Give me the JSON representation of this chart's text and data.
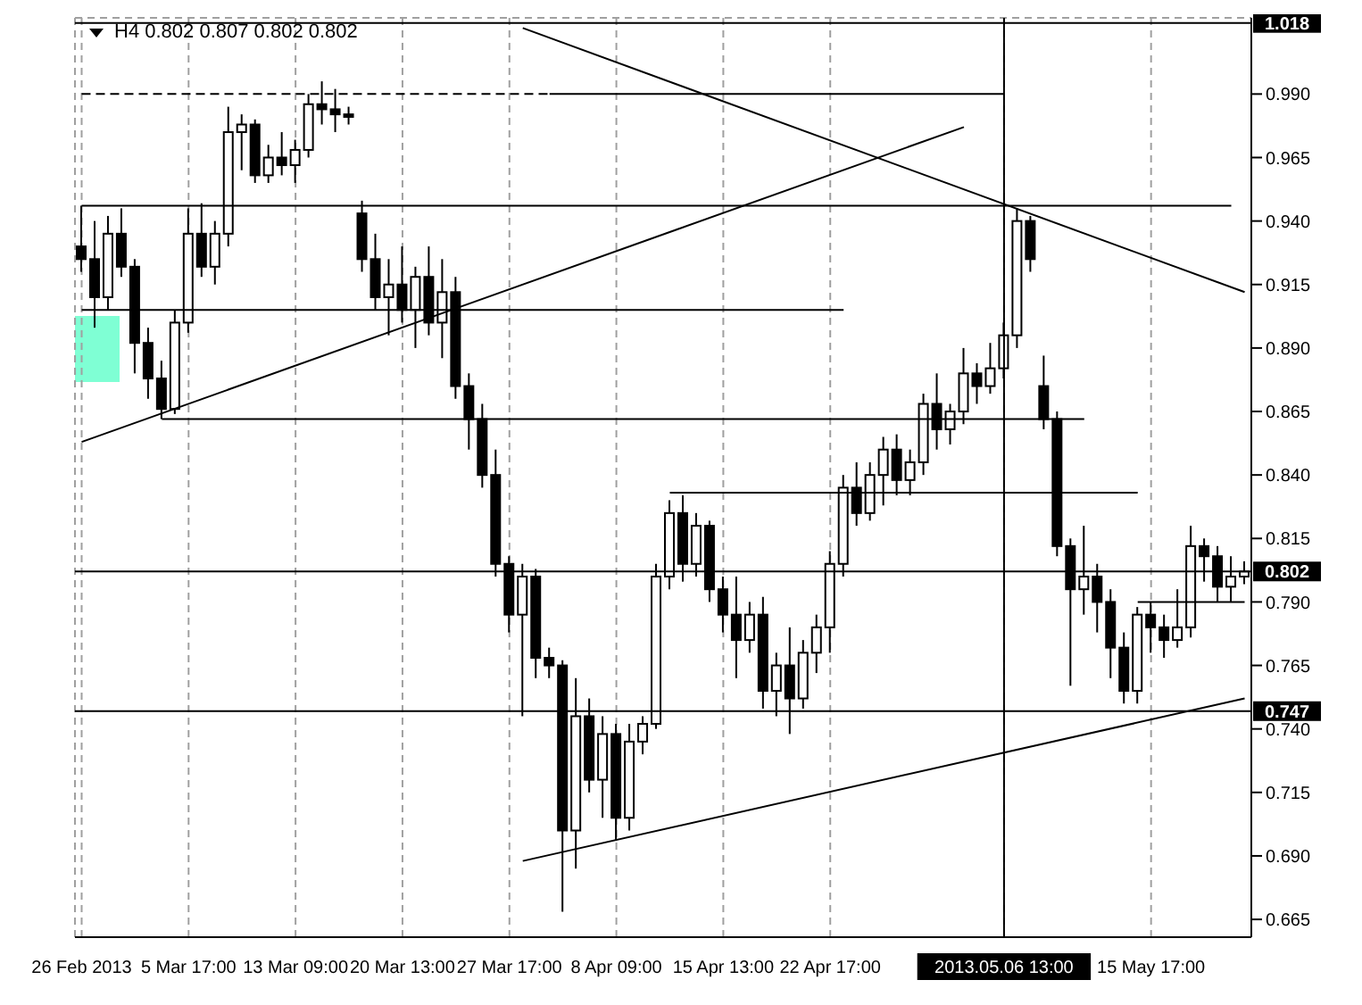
{
  "chart_data": {
    "type": "candlestick",
    "title": "H4  0.802 0.807 0.802 0.802",
    "color": "#000000",
    "grid": true,
    "categories": [
      "26 Feb 2013",
      null,
      null,
      null,
      null,
      null,
      null,
      null,
      "5 Mar 17:00",
      null,
      null,
      null,
      null,
      null,
      null,
      null,
      "13 Mar 09:00",
      null,
      null,
      null,
      null,
      null,
      null,
      null,
      "20 Mar 13:00",
      null,
      null,
      null,
      null,
      null,
      null,
      null,
      "27 Mar 17:00",
      null,
      null,
      null,
      null,
      null,
      null,
      null,
      "8 Apr 09:00",
      null,
      null,
      null,
      null,
      null,
      null,
      null,
      "15 Apr 13:00",
      null,
      null,
      null,
      null,
      null,
      null,
      null,
      "22 Apr 17:00",
      null,
      null,
      null,
      null,
      null,
      null,
      null,
      null,
      null,
      null,
      null,
      null,
      "2013.05.06 13:00",
      null,
      null,
      null,
      null,
      null,
      null,
      null,
      null,
      null,
      null,
      "15 May 17:00",
      null,
      null,
      null,
      null,
      null,
      null,
      null
    ],
    "ohlc": [
      [
        0.93,
        0.946,
        0.92,
        0.925
      ],
      [
        0.925,
        0.94,
        0.898,
        0.91
      ],
      [
        0.91,
        0.942,
        0.905,
        0.935
      ],
      [
        0.935,
        0.945,
        0.918,
        0.922
      ],
      [
        0.922,
        0.925,
        0.88,
        0.892
      ],
      [
        0.892,
        0.898,
        0.87,
        0.878
      ],
      [
        0.878,
        0.885,
        0.862,
        0.866
      ],
      [
        0.866,
        0.905,
        0.864,
        0.9
      ],
      [
        0.9,
        0.945,
        0.896,
        0.935
      ],
      [
        0.935,
        0.947,
        0.918,
        0.922
      ],
      [
        0.922,
        0.94,
        0.915,
        0.935
      ],
      [
        0.935,
        0.985,
        0.93,
        0.975
      ],
      [
        0.975,
        0.982,
        0.96,
        0.978
      ],
      [
        0.978,
        0.98,
        0.955,
        0.958
      ],
      [
        0.958,
        0.97,
        0.955,
        0.965
      ],
      [
        0.965,
        0.975,
        0.958,
        0.962
      ],
      [
        0.962,
        0.972,
        0.955,
        0.968
      ],
      [
        0.968,
        0.99,
        0.965,
        0.986
      ],
      [
        0.986,
        0.995,
        0.978,
        0.984
      ],
      [
        0.984,
        0.992,
        0.975,
        0.982
      ],
      [
        0.982,
        0.985,
        0.978,
        0.981
      ],
      [
        0.943,
        0.948,
        0.92,
        0.925
      ],
      [
        0.925,
        0.935,
        0.905,
        0.91
      ],
      [
        0.91,
        0.925,
        0.895,
        0.915
      ],
      [
        0.915,
        0.93,
        0.9,
        0.905
      ],
      [
        0.905,
        0.922,
        0.89,
        0.918
      ],
      [
        0.918,
        0.93,
        0.895,
        0.9
      ],
      [
        0.9,
        0.925,
        0.886,
        0.912
      ],
      [
        0.912,
        0.918,
        0.87,
        0.875
      ],
      [
        0.875,
        0.88,
        0.85,
        0.862
      ],
      [
        0.862,
        0.868,
        0.835,
        0.84
      ],
      [
        0.84,
        0.85,
        0.8,
        0.805
      ],
      [
        0.805,
        0.808,
        0.778,
        0.785
      ],
      [
        0.785,
        0.805,
        0.745,
        0.8
      ],
      [
        0.8,
        0.803,
        0.76,
        0.768
      ],
      [
        0.768,
        0.772,
        0.76,
        0.765
      ],
      [
        0.765,
        0.767,
        0.668,
        0.7
      ],
      [
        0.7,
        0.76,
        0.685,
        0.745
      ],
      [
        0.745,
        0.752,
        0.715,
        0.72
      ],
      [
        0.72,
        0.745,
        0.705,
        0.738
      ],
      [
        0.738,
        0.742,
        0.696,
        0.705
      ],
      [
        0.705,
        0.742,
        0.7,
        0.735
      ],
      [
        0.735,
        0.745,
        0.73,
        0.742
      ],
      [
        0.742,
        0.805,
        0.74,
        0.8
      ],
      [
        0.8,
        0.83,
        0.795,
        0.825
      ],
      [
        0.825,
        0.832,
        0.798,
        0.805
      ],
      [
        0.805,
        0.825,
        0.8,
        0.82
      ],
      [
        0.82,
        0.822,
        0.79,
        0.795
      ],
      [
        0.795,
        0.8,
        0.778,
        0.785
      ],
      [
        0.785,
        0.8,
        0.76,
        0.775
      ],
      [
        0.775,
        0.79,
        0.77,
        0.785
      ],
      [
        0.785,
        0.792,
        0.748,
        0.755
      ],
      [
        0.755,
        0.77,
        0.745,
        0.765
      ],
      [
        0.765,
        0.78,
        0.738,
        0.752
      ],
      [
        0.752,
        0.775,
        0.748,
        0.77
      ],
      [
        0.77,
        0.785,
        0.762,
        0.78
      ],
      [
        0.78,
        0.81,
        0.77,
        0.805
      ],
      [
        0.805,
        0.84,
        0.8,
        0.835
      ],
      [
        0.835,
        0.845,
        0.82,
        0.825
      ],
      [
        0.825,
        0.845,
        0.822,
        0.84
      ],
      [
        0.84,
        0.855,
        0.828,
        0.85
      ],
      [
        0.85,
        0.856,
        0.832,
        0.838
      ],
      [
        0.838,
        0.85,
        0.832,
        0.845
      ],
      [
        0.845,
        0.872,
        0.84,
        0.868
      ],
      [
        0.868,
        0.88,
        0.85,
        0.858
      ],
      [
        0.858,
        0.868,
        0.852,
        0.865
      ],
      [
        0.865,
        0.89,
        0.86,
        0.88
      ],
      [
        0.88,
        0.884,
        0.868,
        0.875
      ],
      [
        0.875,
        0.892,
        0.872,
        0.882
      ],
      [
        0.882,
        0.9,
        0.878,
        0.895
      ],
      [
        0.895,
        0.945,
        0.89,
        0.94
      ],
      [
        0.94,
        0.942,
        0.92,
        0.925
      ],
      [
        0.875,
        0.887,
        0.858,
        0.862
      ],
      [
        0.862,
        0.865,
        0.808,
        0.812
      ],
      [
        0.812,
        0.815,
        0.757,
        0.795
      ],
      [
        0.795,
        0.82,
        0.785,
        0.8
      ],
      [
        0.8,
        0.805,
        0.778,
        0.79
      ],
      [
        0.79,
        0.795,
        0.76,
        0.772
      ],
      [
        0.772,
        0.778,
        0.75,
        0.755
      ],
      [
        0.755,
        0.788,
        0.75,
        0.785
      ],
      [
        0.785,
        0.79,
        0.77,
        0.78
      ],
      [
        0.78,
        0.785,
        0.768,
        0.775
      ],
      [
        0.775,
        0.795,
        0.772,
        0.78
      ],
      [
        0.78,
        0.82,
        0.776,
        0.812
      ],
      [
        0.812,
        0.815,
        0.798,
        0.808
      ],
      [
        0.808,
        0.812,
        0.79,
        0.796
      ],
      [
        0.796,
        0.808,
        0.79,
        0.8
      ],
      [
        0.8,
        0.806,
        0.797,
        0.802
      ]
    ],
    "series": [
      {
        "type": "line",
        "color": "#000000",
        "line_style": "dashed",
        "values": [
          0.99,
          null,
          null,
          null,
          null,
          null,
          null,
          null,
          null,
          null,
          null,
          null,
          null,
          null,
          null,
          null,
          null,
          null,
          null,
          null,
          null,
          null,
          null,
          null,
          null,
          null,
          null,
          null,
          null,
          null,
          null,
          null,
          null,
          null,
          null,
          0.99,
          null,
          null,
          null,
          null,
          null,
          null,
          null,
          null,
          null,
          null,
          null,
          null,
          null,
          null,
          null,
          null,
          null,
          null,
          null,
          null,
          null,
          null,
          null,
          null,
          null,
          null,
          null,
          null,
          null,
          null,
          null,
          null,
          null,
          null,
          null,
          null,
          null,
          null,
          null,
          null,
          null,
          null,
          null,
          null,
          null,
          null,
          null,
          null,
          null,
          null,
          null,
          null
        ]
      },
      {
        "type": "line",
        "color": "#000000",
        "values": [
          null,
          null,
          null,
          null,
          null,
          null,
          null,
          null,
          null,
          null,
          null,
          null,
          null,
          null,
          null,
          null,
          null,
          null,
          null,
          null,
          null,
          null,
          null,
          null,
          null,
          null,
          null,
          null,
          null,
          null,
          null,
          null,
          null,
          null,
          null,
          0.99,
          null,
          null,
          null,
          null,
          null,
          null,
          null,
          null,
          null,
          null,
          null,
          null,
          null,
          null,
          null,
          null,
          null,
          null,
          null,
          null,
          null,
          null,
          null,
          null,
          null,
          null,
          null,
          null,
          null,
          null,
          null,
          null,
          null,
          0.99,
          null,
          null,
          null,
          null,
          null,
          null,
          null,
          null,
          null,
          null,
          null,
          null,
          null,
          null,
          null,
          null,
          null,
          null
        ]
      },
      {
        "type": "line",
        "color": "#000000",
        "values": [
          0.946,
          null,
          null,
          null,
          null,
          null,
          null,
          null,
          null,
          null,
          null,
          null,
          null,
          null,
          null,
          null,
          null,
          null,
          null,
          null,
          null,
          null,
          null,
          null,
          null,
          null,
          null,
          null,
          null,
          null,
          null,
          null,
          null,
          null,
          null,
          null,
          null,
          null,
          null,
          null,
          null,
          null,
          null,
          null,
          null,
          null,
          null,
          null,
          null,
          null,
          null,
          null,
          null,
          null,
          null,
          null,
          null,
          null,
          null,
          null,
          null,
          null,
          null,
          null,
          null,
          null,
          null,
          null,
          null,
          null,
          null,
          null,
          null,
          null,
          null,
          null,
          null,
          null,
          null,
          null,
          null,
          null,
          null,
          null,
          null,
          null,
          0.946,
          null
        ]
      },
      {
        "type": "line",
        "color": "#000000",
        "values": [
          0.905,
          null,
          null,
          null,
          null,
          null,
          null,
          null,
          null,
          null,
          null,
          null,
          null,
          null,
          null,
          null,
          null,
          null,
          null,
          null,
          null,
          null,
          null,
          null,
          null,
          null,
          null,
          null,
          null,
          null,
          null,
          null,
          null,
          null,
          null,
          null,
          null,
          null,
          null,
          null,
          null,
          null,
          null,
          null,
          null,
          null,
          null,
          null,
          null,
          null,
          null,
          null,
          null,
          null,
          null,
          null,
          null,
          0.905,
          null,
          null,
          null,
          null,
          null,
          null,
          null,
          null,
          null,
          null,
          null,
          null,
          null,
          null,
          null,
          null,
          null,
          null,
          null,
          null,
          null,
          null,
          null,
          null,
          null,
          null,
          null,
          null,
          null,
          null
        ]
      },
      {
        "type": "line",
        "color": "#000000",
        "values": [
          null,
          null,
          null,
          null,
          null,
          null,
          0.862,
          null,
          null,
          null,
          null,
          null,
          null,
          null,
          null,
          null,
          null,
          null,
          null,
          null,
          null,
          null,
          null,
          null,
          null,
          null,
          null,
          null,
          null,
          null,
          null,
          null,
          null,
          null,
          null,
          null,
          null,
          null,
          null,
          null,
          null,
          null,
          null,
          null,
          null,
          null,
          null,
          null,
          null,
          null,
          null,
          null,
          null,
          null,
          null,
          null,
          null,
          null,
          null,
          null,
          null,
          null,
          null,
          null,
          null,
          null,
          null,
          null,
          null,
          null,
          null,
          null,
          null,
          null,
          null,
          0.862,
          null,
          null,
          null,
          null,
          null,
          null,
          null,
          null,
          null,
          null,
          null,
          null
        ]
      },
      {
        "type": "line",
        "color": "#000000",
        "values": [
          null,
          null,
          null,
          null,
          null,
          null,
          null,
          null,
          null,
          null,
          null,
          null,
          null,
          null,
          null,
          null,
          null,
          null,
          null,
          null,
          null,
          null,
          null,
          null,
          null,
          null,
          null,
          null,
          null,
          null,
          null,
          null,
          null,
          null,
          null,
          null,
          null,
          null,
          null,
          null,
          null,
          null,
          null,
          null,
          0.833,
          null,
          null,
          null,
          null,
          null,
          null,
          null,
          null,
          null,
          null,
          null,
          null,
          null,
          null,
          null,
          null,
          null,
          null,
          null,
          null,
          null,
          null,
          null,
          null,
          null,
          null,
          null,
          null,
          null,
          null,
          null,
          null,
          null,
          null,
          0.833,
          null,
          null,
          null,
          null,
          null,
          null,
          null,
          null
        ]
      },
      {
        "type": "line",
        "color": "#000000",
        "values": [
          null,
          null,
          null,
          null,
          null,
          null,
          null,
          null,
          null,
          null,
          null,
          null,
          null,
          null,
          null,
          null,
          null,
          null,
          null,
          null,
          null,
          null,
          null,
          null,
          null,
          null,
          null,
          null,
          null,
          null,
          null,
          null,
          null,
          null,
          null,
          null,
          null,
          null,
          null,
          null,
          null,
          null,
          null,
          null,
          null,
          null,
          null,
          null,
          null,
          null,
          null,
          null,
          null,
          null,
          null,
          null,
          null,
          null,
          null,
          null,
          null,
          null,
          null,
          null,
          null,
          null,
          null,
          null,
          null,
          null,
          null,
          null,
          null,
          null,
          null,
          null,
          null,
          null,
          null,
          0.79,
          null,
          null,
          null,
          null,
          null,
          null,
          null,
          0.79
        ]
      },
      {
        "type": "line",
        "color": "#000000",
        "values": [
          0.853,
          null,
          null,
          null,
          null,
          null,
          null,
          null,
          null,
          null,
          null,
          null,
          null,
          null,
          null,
          null,
          null,
          null,
          null,
          null,
          null,
          null,
          null,
          null,
          null,
          null,
          null,
          null,
          null,
          null,
          null,
          null,
          null,
          null,
          null,
          null,
          null,
          null,
          null,
          null,
          null,
          null,
          null,
          null,
          null,
          null,
          null,
          null,
          null,
          null,
          null,
          null,
          null,
          null,
          null,
          null,
          null,
          null,
          null,
          null,
          null,
          null,
          null,
          null,
          null,
          null,
          0.977,
          null,
          null,
          null,
          null,
          null,
          null,
          null,
          null,
          null,
          null,
          null,
          null,
          null,
          null,
          null,
          null,
          null,
          null,
          null,
          null,
          null
        ]
      },
      {
        "type": "line",
        "color": "#000000",
        "values": [
          null,
          null,
          null,
          null,
          null,
          null,
          null,
          null,
          null,
          null,
          null,
          null,
          null,
          null,
          null,
          null,
          null,
          null,
          null,
          null,
          null,
          null,
          null,
          null,
          null,
          null,
          null,
          null,
          null,
          null,
          null,
          null,
          null,
          1.016,
          null,
          null,
          null,
          null,
          null,
          null,
          null,
          null,
          null,
          null,
          null,
          null,
          null,
          null,
          null,
          null,
          null,
          null,
          null,
          null,
          null,
          null,
          null,
          null,
          null,
          null,
          null,
          null,
          null,
          null,
          null,
          null,
          null,
          null,
          null,
          null,
          null,
          null,
          null,
          null,
          null,
          null,
          null,
          null,
          null,
          null,
          null,
          null,
          null,
          null,
          null,
          null,
          null,
          0.912
        ]
      },
      {
        "type": "line",
        "color": "#000000",
        "values": [
          null,
          null,
          null,
          null,
          null,
          null,
          null,
          null,
          null,
          null,
          null,
          null,
          null,
          null,
          null,
          null,
          null,
          null,
          null,
          null,
          null,
          null,
          null,
          null,
          null,
          null,
          null,
          null,
          null,
          null,
          null,
          null,
          null,
          0.688,
          null,
          null,
          null,
          null,
          null,
          null,
          null,
          null,
          null,
          null,
          null,
          null,
          null,
          null,
          null,
          null,
          null,
          null,
          null,
          null,
          null,
          null,
          null,
          null,
          null,
          null,
          null,
          null,
          null,
          null,
          null,
          null,
          null,
          null,
          null,
          null,
          null,
          null,
          null,
          null,
          null,
          null,
          null,
          null,
          null,
          null,
          null,
          null,
          null,
          null,
          null,
          null,
          null,
          0.752
        ]
      }
    ],
    "ylim": [
      0.658,
      1.02
    ],
    "yticks": [
      0.665,
      {
        "value": 0.69,
        "label": "0.690"
      },
      0.715,
      {
        "value": 0.74,
        "label": "0.740"
      },
      0.765,
      {
        "value": 0.79,
        "label": "0.790"
      },
      0.815,
      {
        "value": 0.84,
        "label": "0.840"
      },
      0.865,
      {
        "value": 0.89,
        "label": "0.890"
      },
      0.915,
      {
        "value": 0.94,
        "label": "0.940"
      },
      0.965,
      {
        "value": 0.99,
        "label": "0.990"
      }
    ],
    "ref_lines": [
      {
        "axis": "y",
        "value": 1.018,
        "label": "1.018",
        "color": "#000000"
      },
      {
        "axis": "y",
        "value": 0.802,
        "label": "0.802",
        "color": "#000000"
      },
      {
        "axis": "y",
        "value": 0.747,
        "label": "0.747",
        "color": "#000000"
      },
      {
        "axis": "x",
        "value": "2013.05.06 13:00",
        "color": "#000000"
      }
    ]
  }
}
